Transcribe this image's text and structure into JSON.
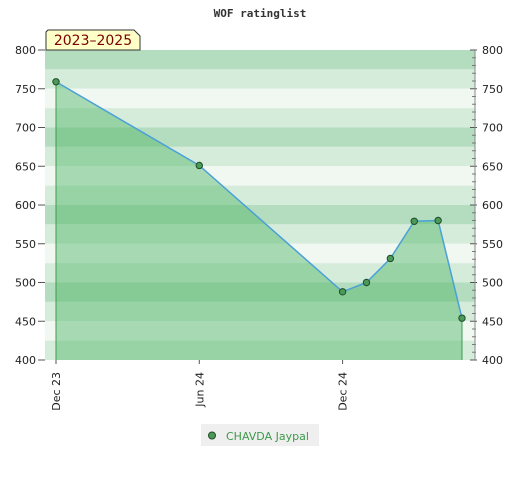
{
  "chart_data": {
    "type": "area",
    "title": "WOF ratinglist",
    "period_label": "2023–2025",
    "x_tick_labels": [
      "Dec 23",
      "Jun 24",
      "Dec 24"
    ],
    "ylim": [
      400,
      800
    ],
    "y_ticks": [
      400,
      450,
      500,
      550,
      600,
      650,
      700,
      750,
      800
    ],
    "grid": true,
    "legend_position": "bottom-center",
    "colors": {
      "line": "#4aa0d8",
      "fill": "#4db567",
      "marker": "#4c9a5a",
      "band_light": "#f1f8f2",
      "band_mid": "#d6ecdb",
      "band_dark": "#b4dcbe"
    },
    "series": [
      {
        "name": "CHAVDA Jaypal",
        "x": [
          "2023-12",
          "2024-06",
          "2024-12",
          "2025-01",
          "2025-02",
          "2025-03",
          "2025-04",
          "2025-05"
        ],
        "values": [
          759,
          651,
          488,
          500,
          531,
          579,
          580,
          454
        ]
      }
    ]
  }
}
